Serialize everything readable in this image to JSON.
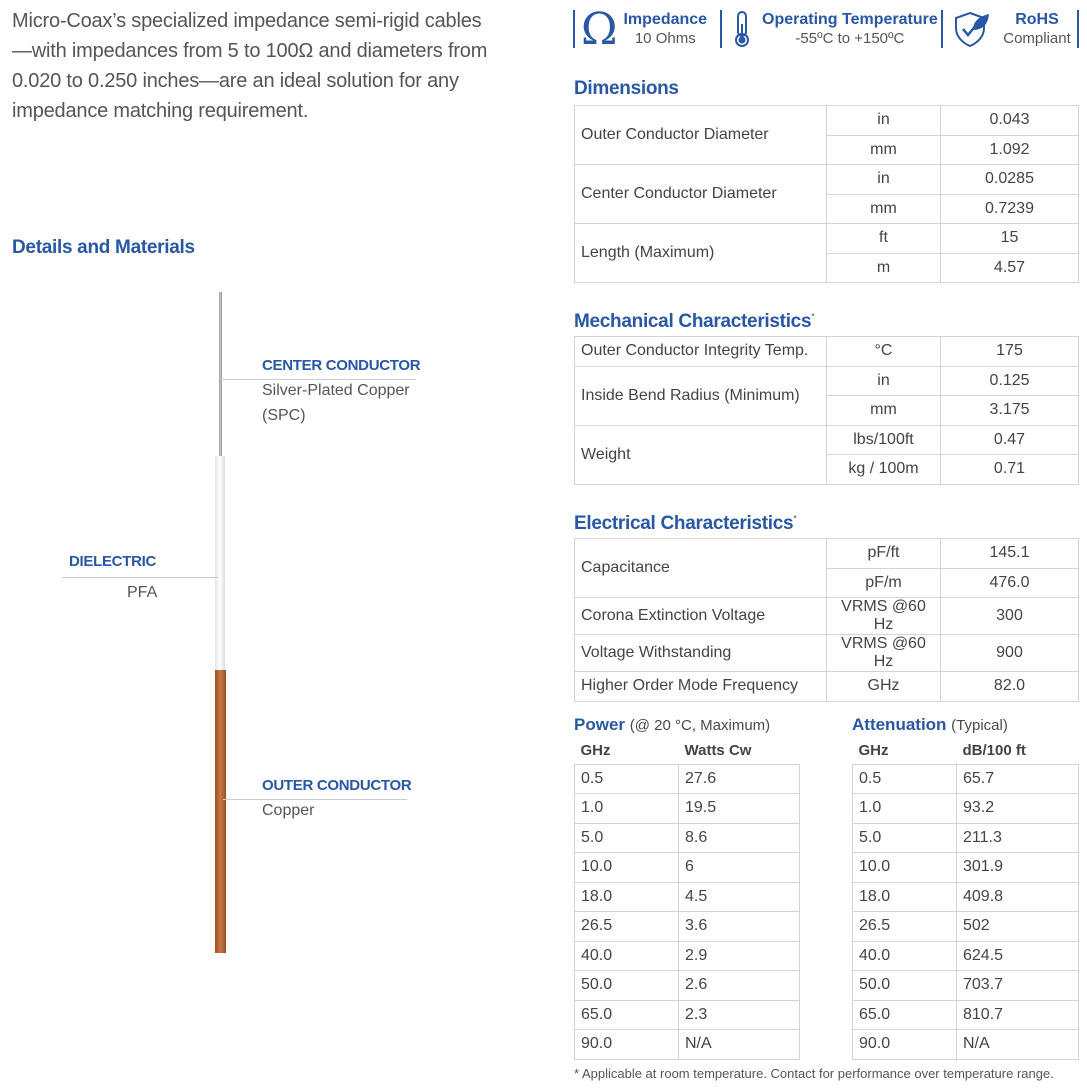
{
  "intro": "Micro-Coax’s specialized impedance semi-rigid cables—with impedances from 5 to 100Ω and diameters from 0.020 to 0.250 inches—are an ideal solution for any impedance matching requirement.",
  "details_title": "Details and Materials",
  "parts": {
    "center": {
      "title": "CENTER CONDUCTOR",
      "line1": "Silver-Plated Copper",
      "line2": "(SPC)"
    },
    "dielectric": {
      "title": "DIELECTRIC",
      "value": "PFA"
    },
    "outer": {
      "title": "OUTER CONDUCTOR",
      "value": "Copper"
    }
  },
  "badges": [
    {
      "icon": "omega-icon",
      "title": "Impedance",
      "value": "10 Ohms"
    },
    {
      "icon": "thermometer-icon",
      "title": "Operating Temperature",
      "value": "-55ºC to +150ºC"
    },
    {
      "icon": "shield-leaf-icon",
      "title": "RoHS",
      "value": "Compliant"
    }
  ],
  "dimensions": {
    "title": "Dimensions",
    "rows": [
      {
        "label": "Outer Conductor Diameter",
        "units": [
          [
            "in",
            "0.043"
          ],
          [
            "mm",
            "1.092"
          ]
        ]
      },
      {
        "label": "Center Conductor Diameter",
        "units": [
          [
            "in",
            "0.0285"
          ],
          [
            "mm",
            "0.7239"
          ]
        ]
      },
      {
        "label": "Length (Maximum)",
        "units": [
          [
            "ft",
            "15"
          ],
          [
            "m",
            "4.57"
          ]
        ]
      }
    ]
  },
  "mechanical": {
    "title": "Mechanical Characteristics",
    "mark": "*",
    "rows": [
      {
        "label": "Outer Conductor Integrity Temp.",
        "units": [
          [
            "°C",
            "175"
          ]
        ]
      },
      {
        "label": "Inside Bend Radius (Minimum)",
        "units": [
          [
            "in",
            "0.125"
          ],
          [
            "mm",
            "3.175"
          ]
        ]
      },
      {
        "label": "Weight",
        "units": [
          [
            "lbs/100ft",
            "0.47"
          ],
          [
            "kg / 100m",
            "0.71"
          ]
        ]
      }
    ]
  },
  "electrical": {
    "title": "Electrical Characteristics",
    "mark": "*",
    "rows": [
      {
        "label": "Capacitance",
        "units": [
          [
            "pF/ft",
            "145.1"
          ],
          [
            "pF/m",
            "476.0"
          ]
        ]
      },
      {
        "label": "Corona Extinction Voltage",
        "units": [
          [
            "VRMS @60 Hz",
            "300"
          ]
        ]
      },
      {
        "label": "Voltage Withstanding",
        "units": [
          [
            "VRMS @60 Hz",
            "900"
          ]
        ]
      },
      {
        "label": "Higher Order Mode Frequency",
        "units": [
          [
            "GHz",
            "82.0"
          ]
        ]
      }
    ]
  },
  "power": {
    "title": "Power",
    "note": "(@ 20 °C, Maximum)",
    "headers": [
      "GHz",
      "Watts Cw"
    ],
    "rows": [
      [
        "0.5",
        "27.6"
      ],
      [
        "1.0",
        "19.5"
      ],
      [
        "5.0",
        "8.6"
      ],
      [
        "10.0",
        "6"
      ],
      [
        "18.0",
        "4.5"
      ],
      [
        "26.5",
        "3.6"
      ],
      [
        "40.0",
        "2.9"
      ],
      [
        "50.0",
        "2.6"
      ],
      [
        "65.0",
        "2.3"
      ],
      [
        "90.0",
        "N/A"
      ]
    ]
  },
  "attenuation": {
    "title": "Attenuation",
    "note": "(Typical)",
    "headers": [
      "GHz",
      "dB/100 ft"
    ],
    "rows": [
      [
        "0.5",
        "65.7"
      ],
      [
        "1.0",
        "93.2"
      ],
      [
        "5.0",
        "211.3"
      ],
      [
        "10.0",
        "301.9"
      ],
      [
        "18.0",
        "409.8"
      ],
      [
        "26.5",
        "502"
      ],
      [
        "40.0",
        "624.5"
      ],
      [
        "50.0",
        "703.7"
      ],
      [
        "65.0",
        "810.7"
      ],
      [
        "90.0",
        "N/A"
      ]
    ]
  },
  "footnote": "* Applicable at room temperature. Contact for performance over temperature range.",
  "colors": {
    "accent": "#2857a4",
    "copper": "#b5652f"
  }
}
